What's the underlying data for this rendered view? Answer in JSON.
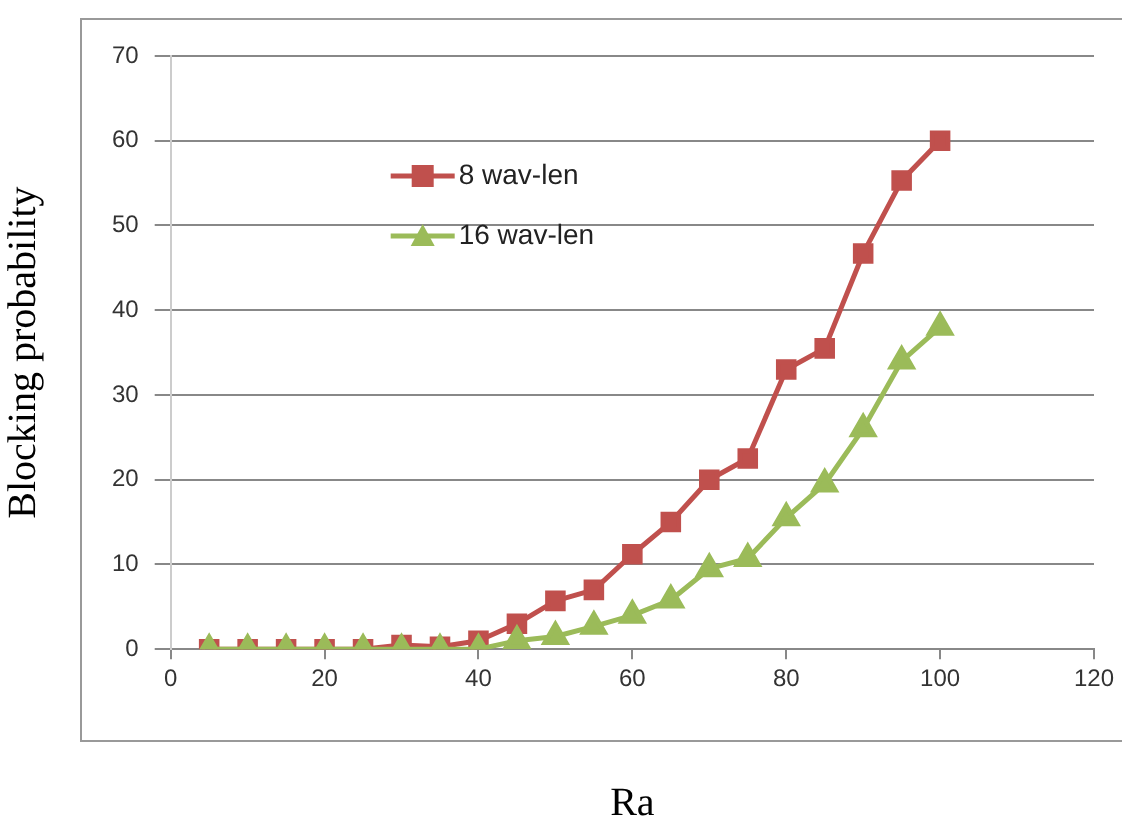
{
  "chart_data": {
    "type": "line",
    "xlabel": "Ra",
    "ylabel": "Blocking probability",
    "x": [
      5,
      10,
      15,
      20,
      25,
      30,
      35,
      40,
      45,
      50,
      55,
      60,
      65,
      70,
      75,
      80,
      85,
      90,
      95,
      100
    ],
    "series": [
      {
        "name": "8 wav-len",
        "color": "#c0504d",
        "marker": "square",
        "values": [
          0,
          0,
          0,
          0,
          0,
          0.5,
          0.3,
          1,
          3,
          5.7,
          7,
          11.2,
          15,
          20,
          22.5,
          33,
          35.5,
          46.7,
          55.3,
          60
        ]
      },
      {
        "name": "16 wav-len",
        "color": "#9bbb59",
        "marker": "triangle",
        "values": [
          0,
          0,
          0,
          0,
          0,
          0,
          0,
          0,
          1,
          1.5,
          2.7,
          4,
          5.8,
          9.5,
          10.7,
          15.5,
          19.5,
          26,
          34,
          38
        ]
      }
    ],
    "xlim": [
      0,
      120
    ],
    "xticks": [
      0,
      20,
      40,
      60,
      80,
      100,
      120
    ],
    "ylim": [
      0,
      70
    ],
    "yticks": [
      0,
      10,
      20,
      30,
      40,
      50,
      60,
      70
    ],
    "grid": "y",
    "legend": "top left",
    "line_style": "solid"
  }
}
